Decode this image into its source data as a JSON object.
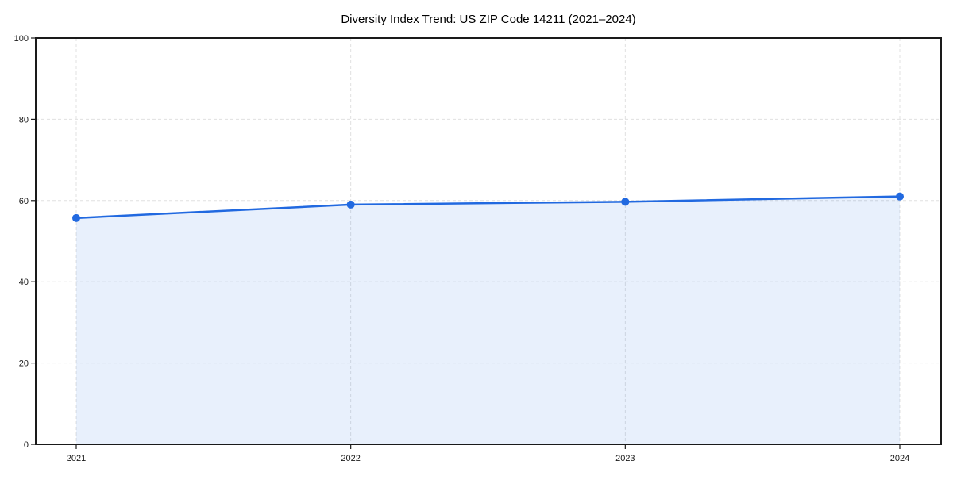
{
  "chart_data": {
    "type": "line",
    "title": "Diversity Index Trend: US ZIP Code 14211 (2021–2024)",
    "categories": [
      "2021",
      "2022",
      "2023",
      "2024"
    ],
    "values": [
      55.7,
      59.0,
      59.7,
      61.0
    ],
    "xlabel": "",
    "ylabel": "",
    "ylim": [
      0,
      100
    ],
    "yticks": [
      0,
      20,
      40,
      60,
      80,
      100
    ],
    "grid": "dashed-both-axes",
    "legend": "none",
    "marker": "circle",
    "area_fill": true,
    "colors": {
      "line": "#2169e0",
      "marker": "#2169e0",
      "area": "rgba(33,105,224,0.10)",
      "grid": "#e0e0e0",
      "spine": "#1a1a1a",
      "tick_label": "#1a1a1a",
      "title": "#000000",
      "background": "#ffffff"
    }
  }
}
